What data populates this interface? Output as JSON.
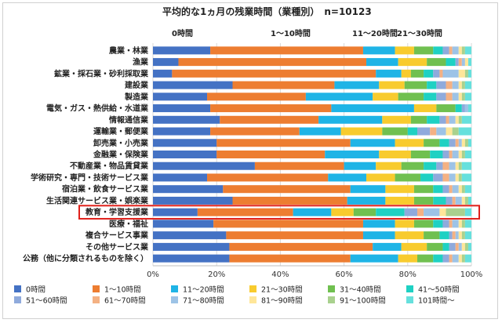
{
  "chart_data": {
    "type": "bar",
    "orientation": "horizontal",
    "stacked": true,
    "percent_scale": true,
    "title": "平均的な1ヵ月の残業時間（業種別）　n=10123",
    "top_labels": [
      "0時間",
      "1～10時間",
      "11～20時間",
      "21～30時間"
    ],
    "xlim": [
      0,
      100
    ],
    "xticks": [
      "0%",
      "20%",
      "40%",
      "60%",
      "80%",
      "100%"
    ],
    "grid": true,
    "legend_position": "bottom",
    "highlighted_category": "教育・学習支援業",
    "highlight_color": "#e0201a",
    "categories": [
      "農業・林業",
      "漁業",
      "鉱業・採石業・砂利採取業",
      "建設業",
      "製造業",
      "電気・ガス・熱供給・水道業",
      "情報通信業",
      "運輸業・郵便業",
      "卸売業・小売業",
      "金融業・保険業",
      "不動産業・物品賃貸業",
      "学術研究・専門・技術サービス業",
      "宿泊業・飲食サービス業",
      "生活関連サービス業・娯楽業",
      "教育・学習支援業",
      "医療・福祉",
      "複合サービス事業",
      "その他サービス業",
      "公務（他に分類されるものを除く）"
    ],
    "series": [
      {
        "name": "0時間",
        "color": "#4472c4",
        "values": [
          18,
          8,
          6,
          25,
          17,
          18,
          21,
          18,
          20,
          20,
          32,
          17,
          22,
          25,
          14,
          19,
          23,
          24,
          24
        ]
      },
      {
        "name": "1～10時間",
        "color": "#ed7d31",
        "values": [
          48,
          59,
          64,
          32,
          31,
          38,
          31,
          28,
          42,
          34,
          28,
          38,
          40,
          36,
          30,
          47,
          43,
          45,
          38
        ]
      },
      {
        "name": "11～20時間",
        "color": "#1fb4e6",
        "values": [
          10,
          10,
          8,
          14,
          21,
          26,
          20,
          13,
          14,
          17,
          10,
          12,
          11,
          12,
          12,
          10,
          10,
          9,
          15
        ]
      },
      {
        "name": "21～30時間",
        "color": "#f8cb2e",
        "values": [
          6,
          9,
          3,
          8,
          8,
          7,
          9,
          13,
          9,
          10,
          8,
          9,
          9,
          9,
          7,
          6,
          9,
          8,
          6
        ]
      },
      {
        "name": "31～40時間",
        "color": "#70c050",
        "values": [
          6,
          6,
          4,
          7,
          8,
          6,
          5,
          8,
          5,
          6,
          7,
          8,
          6,
          6,
          7,
          6,
          5,
          5,
          5
        ]
      },
      {
        "name": "41～50時間",
        "color": "#1fd1c3",
        "values": [
          3,
          3,
          3,
          3,
          4,
          2,
          4,
          3,
          3,
          4,
          4,
          4,
          3,
          4,
          9,
          3,
          3,
          2,
          3
        ]
      },
      {
        "name": "51～60時間",
        "color": "#8faadc",
        "values": [
          2,
          1,
          2,
          3,
          3,
          1,
          2,
          4,
          2,
          2,
          2,
          3,
          2,
          2,
          4,
          2,
          1,
          2,
          2
        ]
      },
      {
        "name": "61～70時間",
        "color": "#f4b183",
        "values": [
          1,
          1,
          1,
          2,
          2,
          0,
          1,
          2,
          1,
          1,
          2,
          2,
          1,
          1,
          2,
          1,
          1,
          1,
          1
        ]
      },
      {
        "name": "71～80時間",
        "color": "#9dc3e6",
        "values": [
          2,
          1,
          5,
          2,
          2,
          1,
          2,
          3,
          1,
          2,
          2,
          2,
          2,
          2,
          5,
          2,
          1,
          1,
          2
        ]
      },
      {
        "name": "81～90時間",
        "color": "#ffe699",
        "values": [
          1,
          1,
          2,
          1,
          1,
          0,
          1,
          2,
          1,
          1,
          1,
          1,
          1,
          1,
          2,
          1,
          1,
          1,
          1
        ]
      },
      {
        "name": "91～100時間",
        "color": "#a9d18e",
        "values": [
          1,
          0,
          1,
          1,
          1,
          0,
          1,
          2,
          1,
          1,
          1,
          1,
          1,
          1,
          6,
          1,
          1,
          1,
          1
        ]
      },
      {
        "name": "101時間～",
        "color": "#66e0dd",
        "values": [
          2,
          1,
          1,
          2,
          2,
          1,
          3,
          4,
          1,
          2,
          3,
          3,
          2,
          1,
          2,
          2,
          2,
          1,
          2
        ]
      }
    ]
  }
}
